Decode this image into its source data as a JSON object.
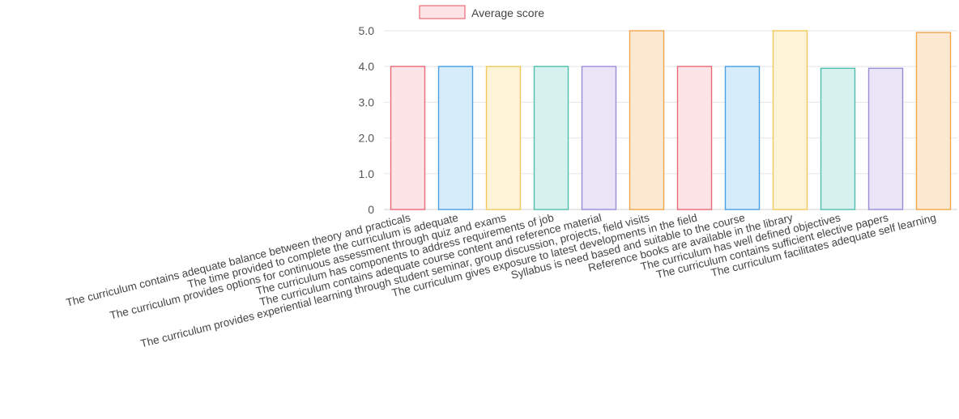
{
  "chart_data": {
    "type": "bar",
    "title": "",
    "xlabel": "",
    "ylabel": "",
    "ylim": [
      0,
      5
    ],
    "yticks": [
      "0",
      "1.0",
      "2.0",
      "3.0",
      "4.0",
      "5.0"
    ],
    "legend": {
      "position": "top-center"
    },
    "series": [
      {
        "name": "Average score",
        "values": [
          4.0,
          4.0,
          4.0,
          4.0,
          4.0,
          5.0,
          4.0,
          4.0,
          5.0,
          3.95,
          3.95,
          4.95
        ]
      }
    ],
    "categories": [
      "The curriculum contains adequate balance between theory and practicals",
      "The time provided to complete the curriculum is adequate",
      "The curriculum provides options for continuous assessment through quiz and exams",
      "The curriculum has components to address requirements of job",
      "The curriculum contains adequate course content and reference material",
      "The curriculum provides experiential learning through student seminar, group discussion, projects, field visits",
      "The curriculum gives exposure to latest developments in the field",
      "Syllabus is need based and suitable to the course",
      "Reference books are available in the library",
      "The curriculum has well defined objectives",
      "The curriculum contains sufficient elective papers",
      "The curriculum facilitates adequate self learning"
    ],
    "bar_colors": [
      {
        "fill": "#fde4e6",
        "stroke": "#ea6a78"
      },
      {
        "fill": "#d6ecfb",
        "stroke": "#4a9fe0"
      },
      {
        "fill": "#fdf3d7",
        "stroke": "#f2c95e"
      },
      {
        "fill": "#d7f1ee",
        "stroke": "#4fbfae"
      },
      {
        "fill": "#e9e5f7",
        "stroke": "#9a8cd8"
      },
      {
        "fill": "#fde9d2",
        "stroke": "#f2a54a"
      },
      {
        "fill": "#fde4e6",
        "stroke": "#ea6a78"
      },
      {
        "fill": "#d6ecfb",
        "stroke": "#4a9fe0"
      },
      {
        "fill": "#fdf3d7",
        "stroke": "#f2c95e"
      },
      {
        "fill": "#d7f1ee",
        "stroke": "#4fbfae"
      },
      {
        "fill": "#e9e5f7",
        "stroke": "#9a8cd8"
      },
      {
        "fill": "#fde9d2",
        "stroke": "#f2a54a"
      }
    ],
    "legend_swatch": {
      "fill": "#fde4e6",
      "stroke": "#ea6a78"
    },
    "grid": true
  }
}
